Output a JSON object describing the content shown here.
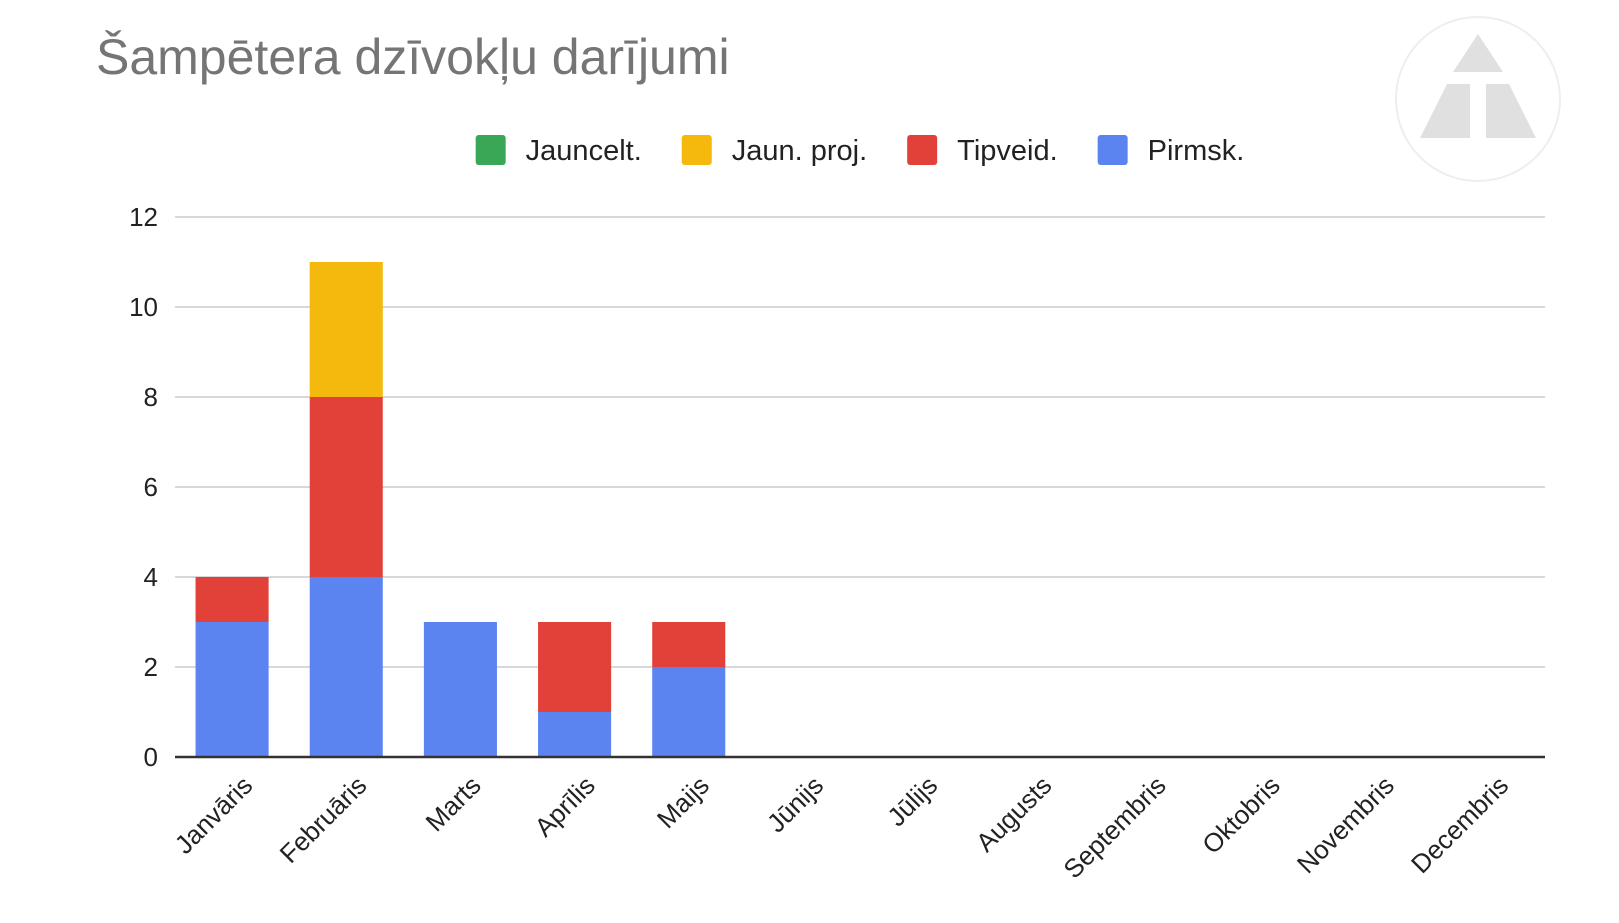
{
  "chart_data": {
    "type": "bar",
    "stacked": true,
    "title": "Šampētera dzīvokļu darījumi",
    "xlabel": "",
    "ylabel": "",
    "ylim": [
      0,
      12
    ],
    "yticks": [
      0,
      2,
      4,
      6,
      8,
      10,
      12
    ],
    "grid": true,
    "legend_position": "top",
    "categories": [
      "Janvāris",
      "Februāris",
      "Marts",
      "Aprīlis",
      "Maijs",
      "Jūnijs",
      "Jūlijs",
      "Augusts",
      "Septembris",
      "Oktobris",
      "Novembris",
      "Decembris"
    ],
    "series": [
      {
        "name": "Jauncelt.",
        "color": "#3aa757",
        "values": [
          0,
          0,
          0,
          0,
          0,
          0,
          0,
          0,
          0,
          0,
          0,
          0
        ]
      },
      {
        "name": "Jaun. proj.",
        "color": "#f4b90c",
        "values": [
          0,
          3,
          0,
          0,
          0,
          0,
          0,
          0,
          0,
          0,
          0,
          0
        ]
      },
      {
        "name": "Tipveid.",
        "color": "#e2413a",
        "values": [
          1,
          4,
          0,
          2,
          1,
          0,
          0,
          0,
          0,
          0,
          0,
          0
        ]
      },
      {
        "name": "Pirmsk.",
        "color": "#5b84f1",
        "values": [
          3,
          4,
          3,
          1,
          2,
          0,
          0,
          0,
          0,
          0,
          0,
          0
        ]
      }
    ],
    "stack_order": [
      "Pirmsk.",
      "Tipveid.",
      "Jaun. proj.",
      "Jauncelt."
    ]
  },
  "logo": {
    "icon": "triangle-logo-icon"
  }
}
